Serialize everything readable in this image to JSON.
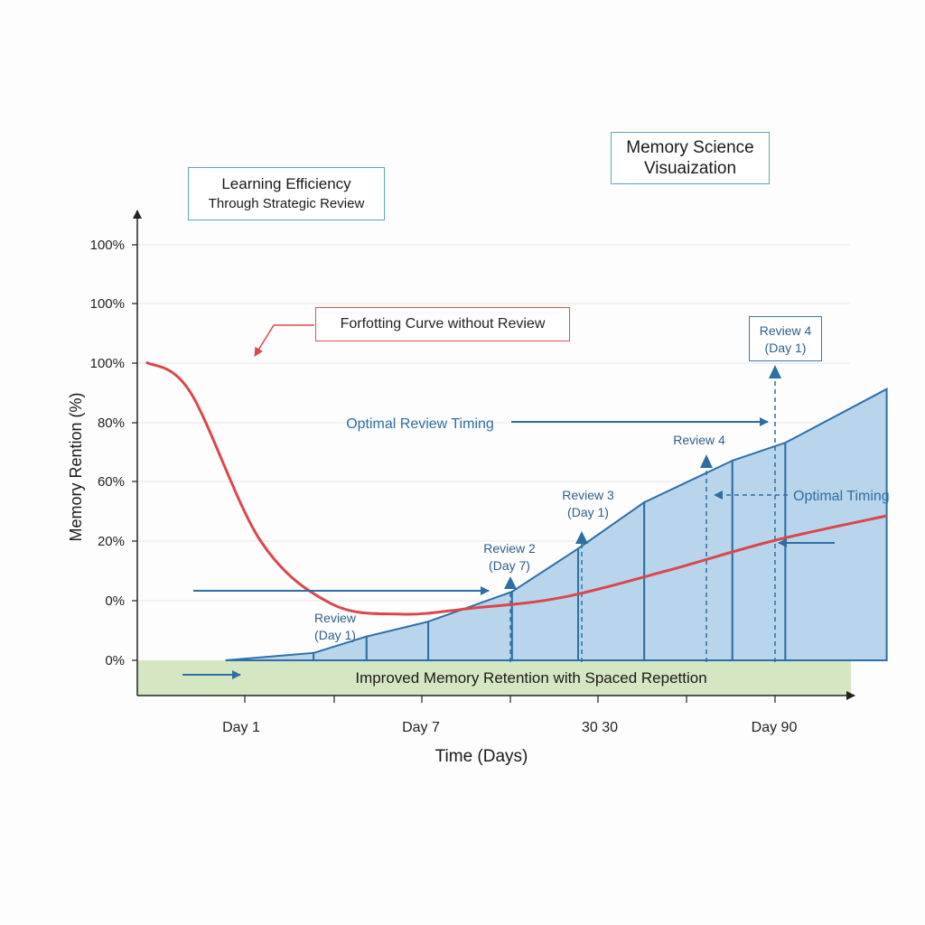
{
  "header": {
    "science_title_line1": "Memory Science",
    "science_title_line2": "Visuaization",
    "efficiency_title": "Learning Efficiency",
    "efficiency_subtitle": "Through Strategic Review"
  },
  "colors": {
    "forgetting_curve": "#d9484a",
    "review_steps_fill": "#b8d5ec",
    "review_steps_stroke": "#2d6fa8",
    "arrow_blue": "#2d6fa3",
    "baseline_band": "#d5e6c3",
    "axis": "#222222",
    "grid": "#e6e6e6"
  },
  "chart_data": {
    "type": "line",
    "ylabel": "Memory Rention (%)",
    "xlabel": "Time (Days)",
    "y_tick_labels": [
      "100%",
      "100%",
      "100%",
      "80%",
      "60%",
      "20%",
      "0%",
      "0%"
    ],
    "x_tick_labels": [
      "Day 1",
      "Day 7",
      "30 30",
      "Day 90"
    ],
    "grid": "horizontal",
    "series": [
      {
        "name": "Forfotting Curve without Review",
        "points": [
          [
            0.1,
            100
          ],
          [
            0.6,
            90
          ],
          [
            1.4,
            40
          ],
          [
            2.2,
            19
          ],
          [
            3.0,
            15.5
          ],
          [
            3.8,
            17.5
          ],
          [
            4.8,
            21
          ],
          [
            6.0,
            30
          ],
          [
            7.2,
            40
          ],
          [
            8.5,
            48.5
          ]
        ]
      },
      {
        "type": "step-area",
        "steps": [
          {
            "x0": 1.0,
            "x1": 2.0,
            "y0": 0,
            "y1": 2.5
          },
          {
            "x0": 2.0,
            "x1": 2.6,
            "y0": 2.5,
            "y1": 8
          },
          {
            "x0": 2.6,
            "x1": 3.3,
            "y0": 8,
            "y1": 13
          },
          {
            "x0": 3.3,
            "x1": 4.25,
            "y0": 13,
            "y1": 23
          },
          {
            "x0": 4.25,
            "x1": 5.0,
            "y0": 23,
            "y1": 37.5
          },
          {
            "x0": 5.0,
            "x1": 5.75,
            "y0": 37.5,
            "y1": 53
          },
          {
            "x0": 5.75,
            "x1": 6.75,
            "y0": 53,
            "y1": 67
          },
          {
            "x0": 6.75,
            "x1": 7.35,
            "y0": 67,
            "y1": 73
          },
          {
            "x0": 7.35,
            "x1": 8.5,
            "y0": 73,
            "y1": 91
          }
        ]
      }
    ],
    "annotations": [
      {
        "text": "Forfotting Curve without Review"
      },
      {
        "text": "Optimal Review Timing"
      },
      {
        "text": "Optimal Timing"
      },
      {
        "text": "Improved Memory Retention with Spaced Repettion"
      }
    ],
    "review_labels": [
      {
        "line1": "Review",
        "line2": "(Day 1)"
      },
      {
        "line1": "Review 2",
        "line2": "(Day 7)"
      },
      {
        "line1": "Review 3",
        "line2": "(Day 1)"
      },
      {
        "line1": "Review 4",
        "line2": ""
      },
      {
        "line1": "Review 4",
        "line2": "(Day 1)"
      }
    ]
  }
}
